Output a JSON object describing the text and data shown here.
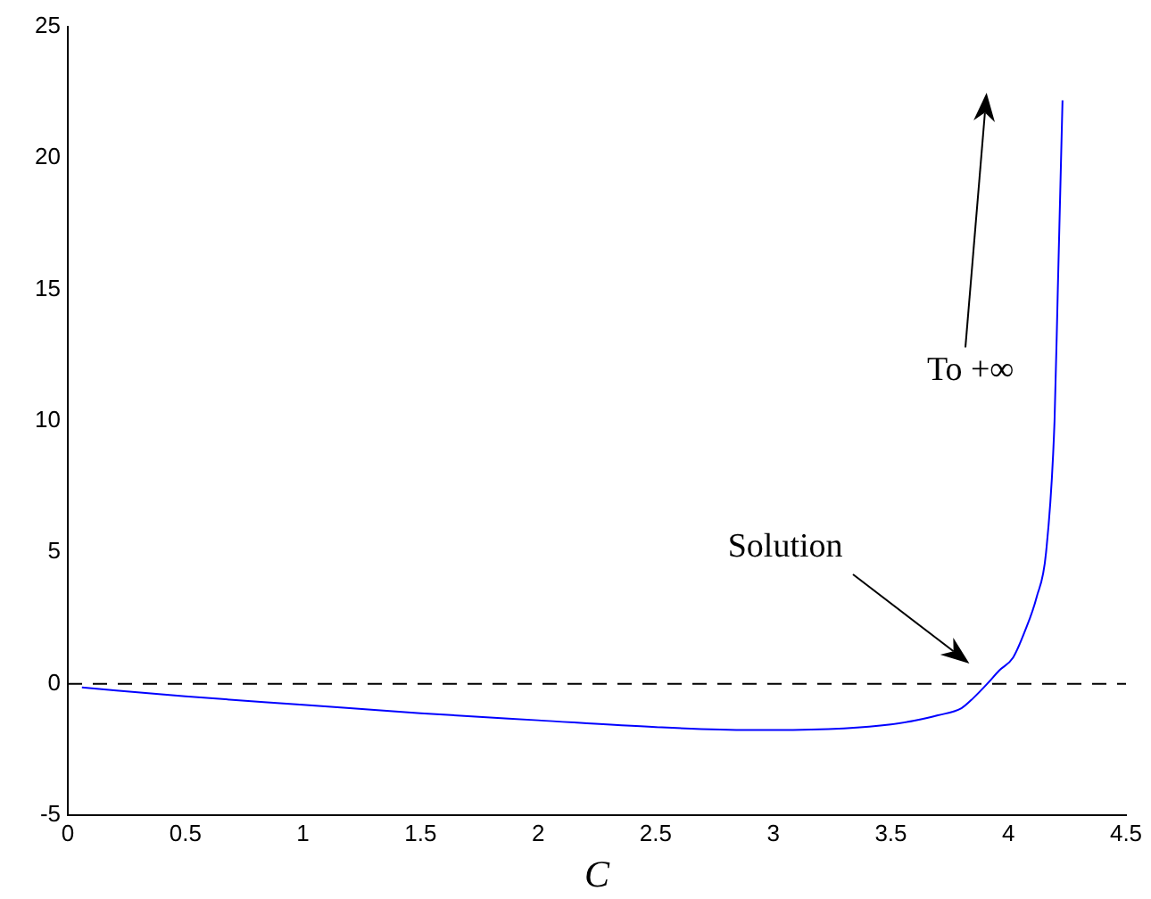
{
  "chart_data": {
    "type": "line",
    "xlabel": "C",
    "x": [
      0.06,
      0.5,
      1,
      1.5,
      2,
      2.5,
      2.9,
      3,
      3.3,
      3.5,
      3.6,
      3.7,
      3.8,
      3.85,
      3.91,
      3.96,
      4.02,
      4.07,
      4.12,
      4.16,
      4.196,
      4.21,
      4.23
    ],
    "series": [
      {
        "color": "#0000ff",
        "values": [
          -0.14,
          -0.48,
          -0.8,
          -1.12,
          -1.39,
          -1.65,
          -1.76,
          -1.76,
          -1.7,
          -1.55,
          -1.4,
          -1.2,
          -0.93,
          -0.55,
          0,
          0.5,
          1,
          2,
          3.3,
          5,
          10,
          15,
          22.2
        ]
      }
    ],
    "xlim": [
      0,
      4.5
    ],
    "xticks": [
      0,
      0.5,
      1,
      1.5,
      2,
      2.5,
      3,
      3.5,
      4,
      4.5
    ],
    "ylim": [
      -5,
      25
    ],
    "yticks": [
      -5,
      0,
      5,
      10,
      15,
      20,
      25
    ],
    "grid": false,
    "legend": false,
    "marker": "none",
    "line_style": "solid",
    "ref_lines": [
      {
        "axis": "y",
        "value": 0,
        "color": "#000000",
        "line_style": "dashed"
      }
    ],
    "annotations": [
      "Solution",
      "To +∞"
    ]
  }
}
